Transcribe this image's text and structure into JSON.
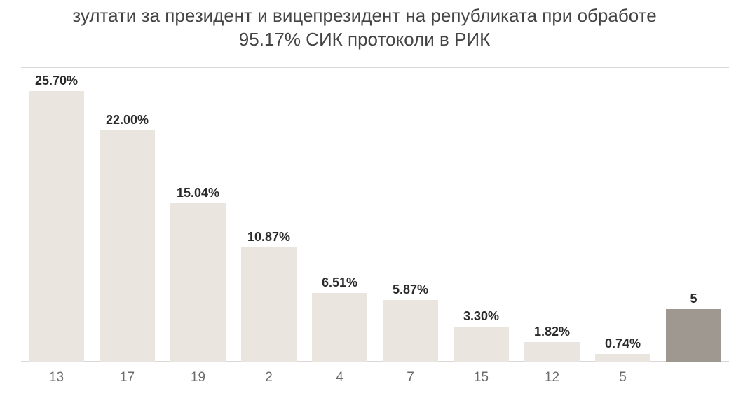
{
  "title_line1": "зултати за президент и вицепрезидент на републиката при обработе",
  "title_line2": "95.17% СИК протоколи в РИК",
  "chart": {
    "type": "bar",
    "background_color": "#ffffff",
    "grid_color": "#d8d8d8",
    "normal_bar_color": "#eae6df",
    "highlight_bar_color": "#9e9890",
    "value_text_color": "#2b2b2b",
    "xlabel_text_color": "#6b6b6b",
    "title_text_color": "#444444",
    "title_fontsize": 26,
    "value_fontsize": 18,
    "xlabel_fontsize": 19,
    "ylim": [
      0,
      28
    ],
    "bar_width": 0.78,
    "categories": [
      "13",
      "17",
      "19",
      "2",
      "4",
      "7",
      "15",
      "12",
      "5",
      ""
    ],
    "values": [
      25.7,
      22.0,
      15.04,
      10.87,
      6.51,
      5.87,
      3.3,
      1.82,
      0.74,
      5.0
    ],
    "value_labels": [
      "25.70%",
      "22.00%",
      "15.04%",
      "10.87%",
      "6.51%",
      "5.87%",
      "3.30%",
      "1.82%",
      "0.74%",
      "5"
    ],
    "highlight_last": true
  }
}
